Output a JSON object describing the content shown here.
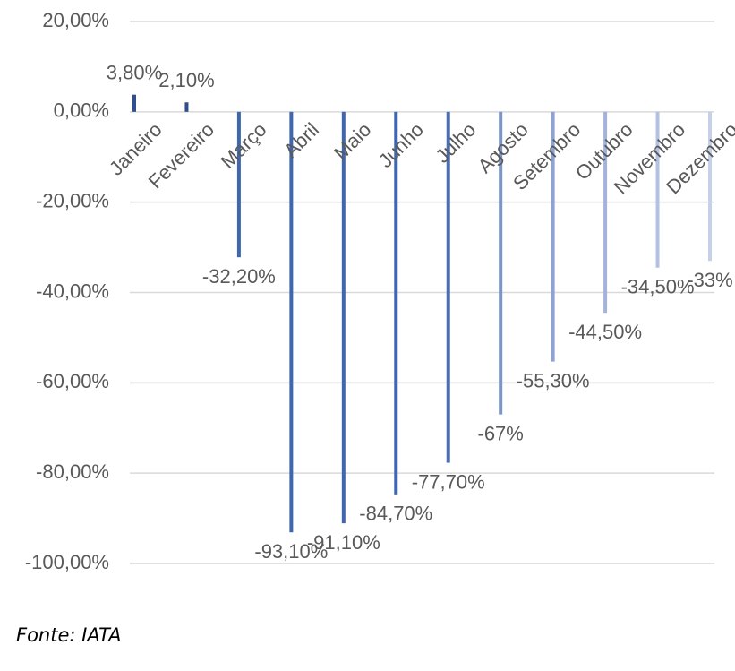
{
  "chart_data": {
    "type": "bar",
    "categories": [
      "Janeiro",
      "Fevereiro",
      "Março",
      "Abril",
      "Maio",
      "Junho",
      "Julho",
      "Agosto",
      "Setembro",
      "Outubro",
      "Novembro",
      "Dezembro"
    ],
    "values": [
      3.8,
      2.1,
      -32.2,
      -93.1,
      -91.1,
      -84.7,
      -77.7,
      -67,
      -55.3,
      -44.5,
      -34.5,
      -33
    ],
    "value_labels": [
      "3,80%",
      "2,10%",
      "-32,20%",
      "-93,10%",
      "-91,10%",
      "-84,70%",
      "-77,70%",
      "-67%",
      "-55,30%",
      "-44,50%",
      "-34,50%",
      "-33%"
    ],
    "colors": [
      "#2f4f8f",
      "#2f4f8f",
      "#4066ad",
      "#4066ad",
      "#4066ad",
      "#4066ad",
      "#4a6db3",
      "#7d94c8",
      "#8fa3d1",
      "#a3b3da",
      "#b4c1e2",
      "#c6d0ea"
    ],
    "ylim": [
      -100,
      20
    ],
    "yticks": [
      {
        "value": 20,
        "label": "20,00%"
      },
      {
        "value": 0,
        "label": "0,00%"
      },
      {
        "value": -20,
        "label": "-20,00%"
      },
      {
        "value": -40,
        "label": "-40,00%"
      },
      {
        "value": -60,
        "label": "-60,00%"
      },
      {
        "value": -80,
        "label": "-80,00%"
      },
      {
        "value": -100,
        "label": "-100,00%"
      }
    ],
    "grid": true,
    "source": "Fonte: IATA"
  }
}
